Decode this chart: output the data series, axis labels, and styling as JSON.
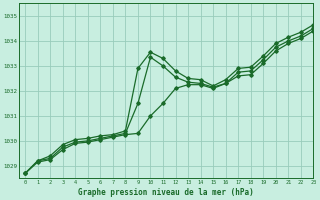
{
  "title": "Graphe pression niveau de la mer (hPa)",
  "xlim": [
    -0.5,
    23
  ],
  "ylim": [
    1028.5,
    1035.5
  ],
  "yticks": [
    1029,
    1030,
    1031,
    1032,
    1033,
    1034,
    1035
  ],
  "xticks": [
    0,
    1,
    2,
    3,
    4,
    5,
    6,
    7,
    8,
    9,
    10,
    11,
    12,
    13,
    14,
    15,
    16,
    17,
    18,
    19,
    20,
    21,
    22,
    23
  ],
  "bg_color": "#c8eee0",
  "grid_color": "#99ccbb",
  "line_color": "#1a6b2a",
  "series1_x": [
    0,
    1,
    2,
    3,
    4,
    5,
    6,
    7,
    8,
    9,
    10,
    11,
    12,
    13,
    14,
    15,
    16,
    17,
    18,
    19,
    20,
    21,
    22,
    23
  ],
  "series1_y": [
    1028.7,
    1029.2,
    1029.4,
    1029.85,
    1030.05,
    1030.1,
    1030.2,
    1030.25,
    1030.4,
    1032.9,
    1033.55,
    1033.3,
    1032.8,
    1032.5,
    1032.45,
    1032.2,
    1032.45,
    1032.9,
    1032.95,
    1033.4,
    1033.9,
    1034.15,
    1034.35,
    1034.65
  ],
  "series2_x": [
    0,
    1,
    2,
    3,
    4,
    5,
    6,
    7,
    8,
    9,
    10,
    11,
    12,
    13,
    14,
    15,
    16,
    17,
    18,
    19,
    20,
    21,
    22,
    23
  ],
  "series2_y": [
    1028.7,
    1029.2,
    1029.3,
    1029.75,
    1029.95,
    1030.0,
    1030.1,
    1030.2,
    1030.3,
    1031.5,
    1033.35,
    1033.0,
    1032.55,
    1032.35,
    1032.3,
    1032.15,
    1032.3,
    1032.75,
    1032.8,
    1033.25,
    1033.75,
    1034.0,
    1034.2,
    1034.5
  ],
  "series3_x": [
    0,
    1,
    2,
    3,
    4,
    5,
    6,
    7,
    8,
    9,
    10,
    11,
    12,
    13,
    14,
    15,
    16,
    17,
    18,
    19,
    20,
    21,
    22,
    23
  ],
  "series3_y": [
    1028.7,
    1029.15,
    1029.25,
    1029.65,
    1029.9,
    1029.95,
    1030.05,
    1030.15,
    1030.25,
    1030.3,
    1031.0,
    1031.5,
    1032.1,
    1032.25,
    1032.25,
    1032.1,
    1032.3,
    1032.6,
    1032.65,
    1033.1,
    1033.6,
    1033.9,
    1034.1,
    1034.4
  ]
}
